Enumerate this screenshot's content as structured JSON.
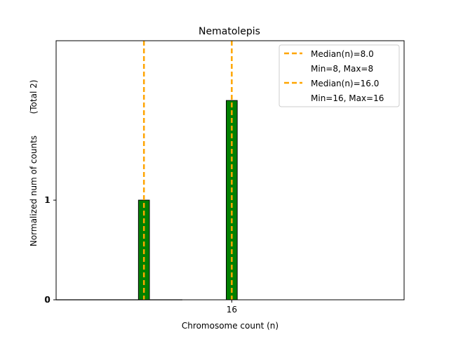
{
  "chart_data": {
    "type": "bar",
    "title": "Nematolepis",
    "xlabel": "Chromosome count (n)",
    "ylabel": "Normalized num of counts",
    "ylabel_note": "(Total 2)",
    "bars": [
      {
        "x": 8,
        "value": 1.0
      },
      {
        "x": 16,
        "value": 2.0
      }
    ],
    "bar_color": "#008000",
    "bar_edge_color": "#000000",
    "median_lines": [
      {
        "x": 8,
        "label": "Median(n)=8.0",
        "range_label": "Min=8, Max=8"
      },
      {
        "x": 16,
        "label": "Median(n)=16.0",
        "range_label": "Min=16, Max=16"
      }
    ],
    "median_color": "#FFA500",
    "x_ticks": [
      16
    ],
    "y_ticks": [
      0,
      1
    ],
    "xlim": [
      0,
      31.7
    ],
    "ylim": [
      0,
      2.6
    ],
    "grid": false,
    "legend_position": "upper right"
  }
}
